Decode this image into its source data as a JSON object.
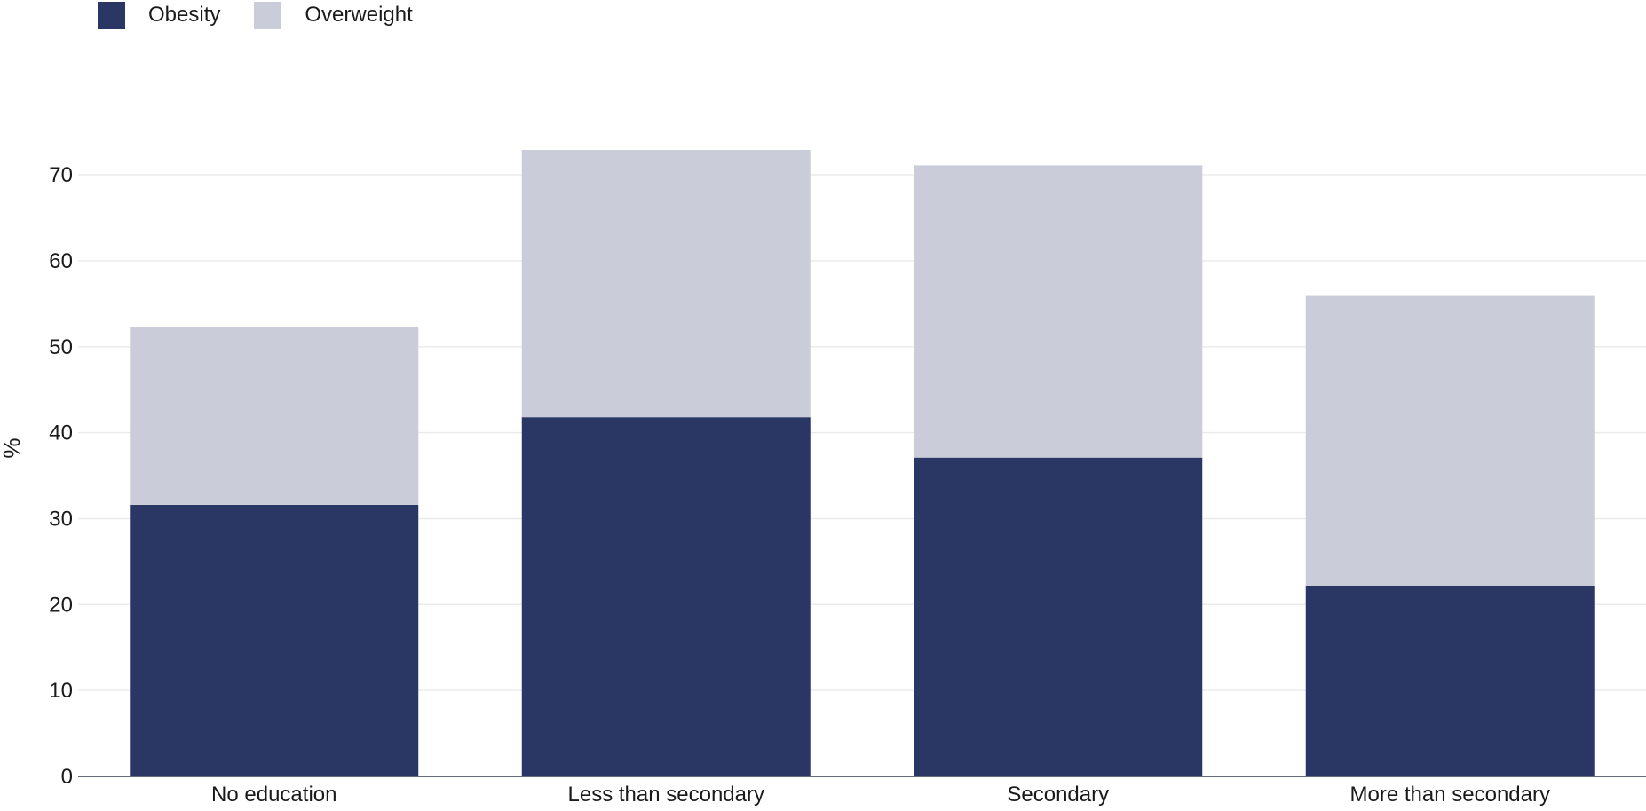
{
  "legend": {
    "items": [
      {
        "label": "Obesity",
        "color": "#2a3764"
      },
      {
        "label": "Overweight",
        "color": "#cacdd9"
      }
    ]
  },
  "chart_data": {
    "type": "bar",
    "stacked": true,
    "categories": [
      "No education",
      "Less than secondary",
      "Secondary",
      "More than secondary"
    ],
    "series": [
      {
        "name": "Obesity",
        "color": "#2a3764",
        "values": [
          31.6,
          41.8,
          37.1,
          22.2
        ]
      },
      {
        "name": "Overweight",
        "color": "#cacdd9",
        "values": [
          20.7,
          31.1,
          34.0,
          33.7
        ]
      }
    ],
    "title": "",
    "xlabel": "",
    "ylabel": "%",
    "ylim": [
      0,
      80
    ],
    "yticks": [
      0,
      10,
      20,
      30,
      40,
      50,
      60,
      70
    ],
    "grid": true,
    "legend_position": "top-left"
  }
}
